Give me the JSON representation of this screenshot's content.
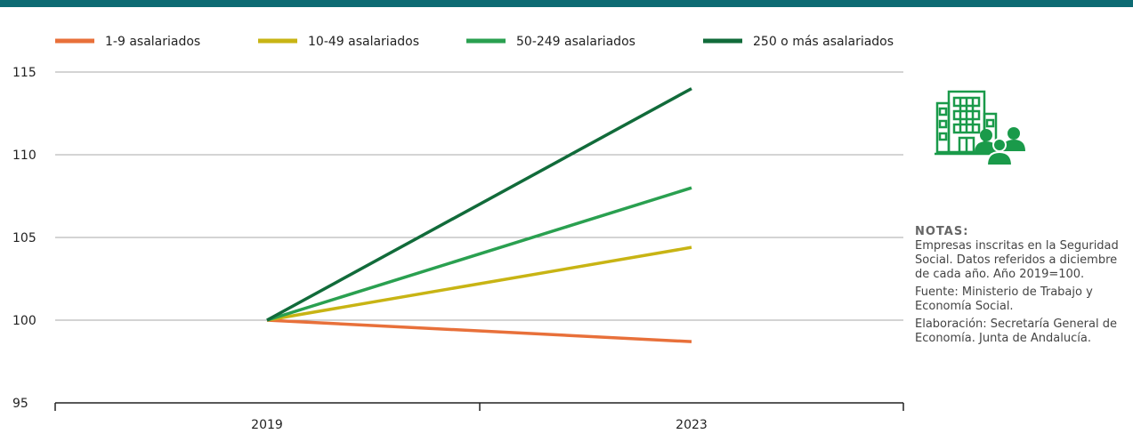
{
  "colors": {
    "top_bar": "#0d6b73",
    "grid": "#a8a8a8",
    "axis": "#222222",
    "icon": "#1a9a4a"
  },
  "icons": {
    "illustration": "building-with-people-icon"
  },
  "notes": {
    "title": "NOTAS:",
    "body": "Empresas inscritas en la Seguridad Social. Datos referidos a diciembre de cada año. Año 2019=100.",
    "source_label": "Fuente:",
    "source_text": " Ministerio de Trabajo y Economía Social.",
    "elab_label": "Elaboración:",
    "elab_text": " Secretaría General de Economía. Junta de Andalucía."
  },
  "chart_data": {
    "type": "line",
    "title": "",
    "xlabel": "",
    "ylabel": "",
    "x": [
      "2019",
      "2023"
    ],
    "ylim": [
      95,
      115
    ],
    "yticks": [
      95,
      100,
      105,
      110,
      115
    ],
    "grid": true,
    "legend_position": "top",
    "series": [
      {
        "name": "1-9 asalariados",
        "color": "#e8703a",
        "values": [
          100,
          98.7
        ]
      },
      {
        "name": "10-49 asalariados",
        "color": "#c8b414",
        "values": [
          100,
          104.4
        ]
      },
      {
        "name": "50-249 asalariados",
        "color": "#2aa050",
        "values": [
          100,
          108.0
        ]
      },
      {
        "name": "250 o más asalariados",
        "color": "#116b3a",
        "values": [
          100,
          114.0
        ]
      }
    ]
  }
}
